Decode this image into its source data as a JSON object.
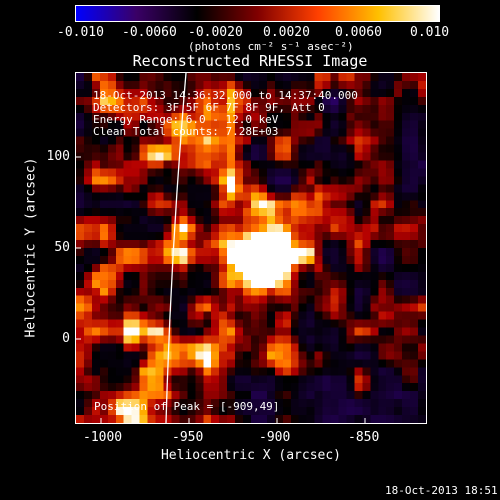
{
  "colorbar": {
    "ticks": [
      "-0.010",
      "-0.0060",
      "-0.0020",
      "0.0020",
      "0.0060",
      "0.010"
    ],
    "units_label": "(photons cm⁻² s⁻¹ asec⁻²)",
    "colors": [
      "#0000ff",
      "#3a0066",
      "#000000",
      "#800000",
      "#ff4000",
      "#ffc000",
      "#ffffff"
    ]
  },
  "plot": {
    "title": "Reconstructed RHESSI Image",
    "xlabel": "Heliocentric X (arcsec)",
    "ylabel": "Heliocentric Y (arcsec)",
    "xticks": [
      "-1000",
      "-950",
      "-900",
      "-850"
    ],
    "yticks": [
      "100",
      "50",
      "0"
    ],
    "info": [
      "18-Oct-2013 14:36:32.000 to 14:37:40.000",
      "Detectors: 3F 5F 6F 7F 8F 9F, Att 0",
      "Energy Range: 6.0 - 12.0 keV",
      "Clean    Total counts: 7.28E+03"
    ],
    "peak_label": "Position of Peak = [-909,49]"
  },
  "footer": {
    "timestamp": "18-Oct-2013 18:51"
  }
}
